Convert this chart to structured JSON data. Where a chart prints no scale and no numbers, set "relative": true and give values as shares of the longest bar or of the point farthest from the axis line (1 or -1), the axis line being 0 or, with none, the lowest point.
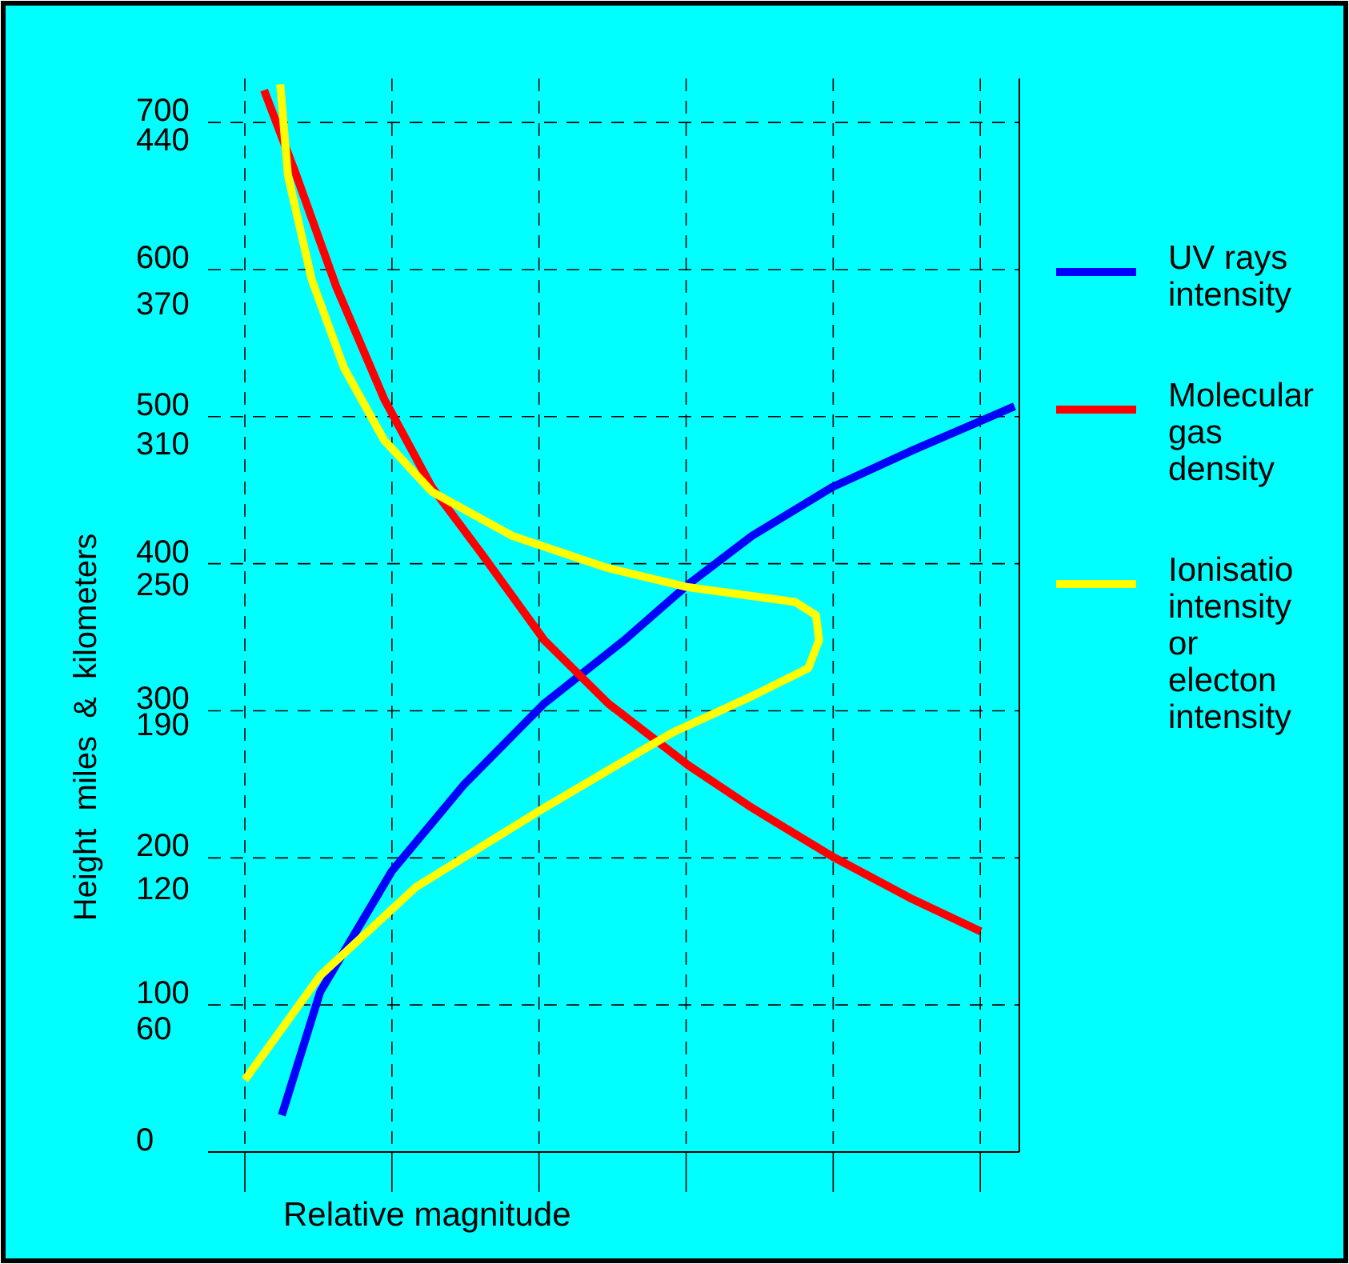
{
  "chart_data": {
    "type": "line",
    "orientation": "horizontal",
    "relative": true,
    "xlabel": "Relative magnitude",
    "y2label": "Height  miles  &  kilometers",
    "ylim": [
      0,
      730
    ],
    "yticks": [
      0,
      100,
      200,
      300,
      400,
      500,
      600,
      700
    ],
    "y2lim": [
      7,
      466
    ],
    "y2ticks": [
      60,
      120,
      190,
      250,
      310,
      370,
      440
    ],
    "grid": true,
    "legend": "right",
    "marker": "none",
    "line_style": "solid",
    "series": [
      {
        "name": "UV rays intensity",
        "color": "#0000ff",
        "x": [
          25,
          109,
          191,
          250,
          305,
          348,
          386,
          419,
          452,
          477,
          507
        ],
        "values": [
          0.048,
          0.098,
          0.191,
          0.285,
          0.389,
          0.493,
          0.576,
          0.659,
          0.763,
          0.867,
          1
        ]
      },
      {
        "name": "Molecular gas density",
        "color": "#ff0000",
        "x": [
          722,
          664,
          588,
          512,
          452,
          408,
          348,
          305,
          263,
          234,
          201,
          172,
          150
        ],
        "values": [
          0.025,
          0.067,
          0.119,
          0.181,
          0.243,
          0.306,
          0.389,
          0.472,
          0.576,
          0.659,
          0.763,
          0.867,
          0.956
        ]
      },
      {
        "name": "Ionisatio intensity or electon intensity",
        "color": "#ffff00",
        "x": [
          726,
          664,
          593,
          533,
          484,
          449,
          419,
          397,
          384,
          374,
          365,
          348,
          329,
          310,
          285,
          234,
          180,
          120,
          49
        ],
        "values": [
          0.046,
          0.056,
          0.087,
          0.129,
          0.181,
          0.243,
          0.347,
          0.472,
          0.576,
          0.715,
          0.742,
          0.746,
          0.732,
          0.659,
          0.555,
          0.389,
          0.222,
          0.098,
          0
        ]
      }
    ]
  }
}
